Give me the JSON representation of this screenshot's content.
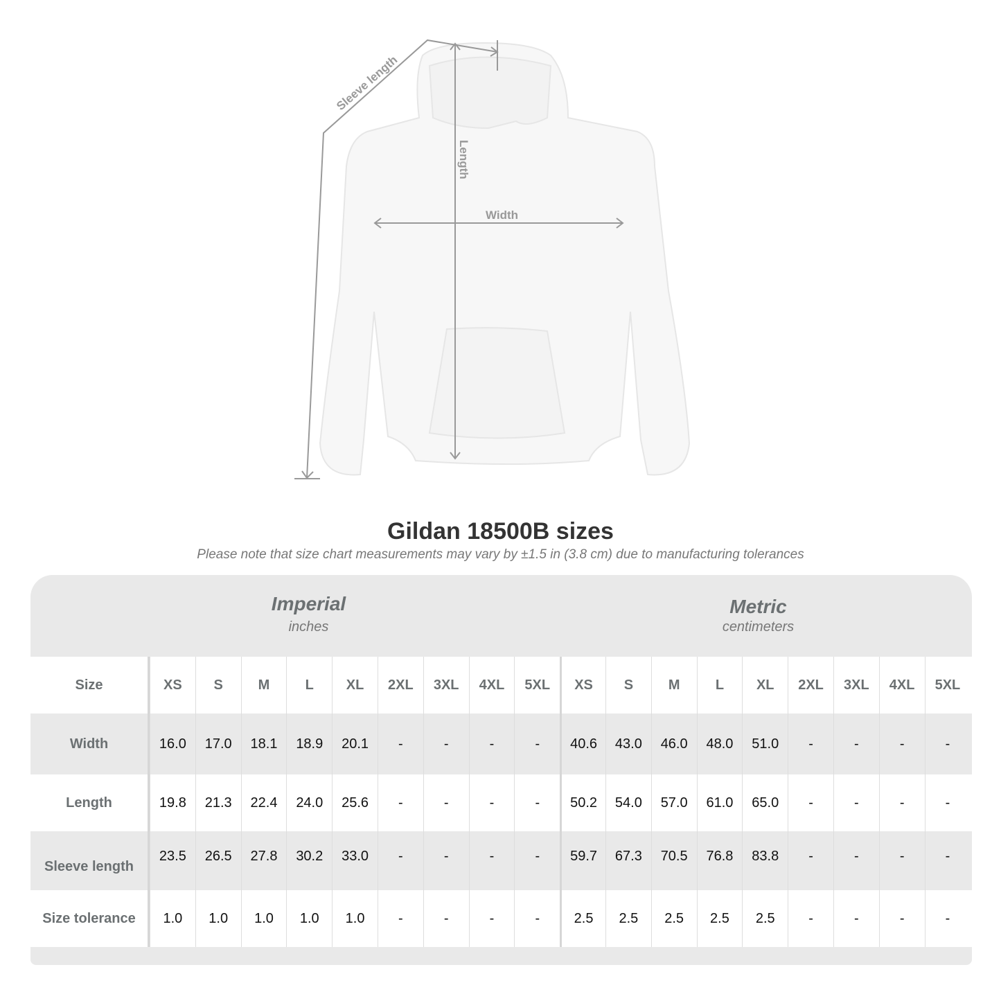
{
  "diagram": {
    "labels": {
      "sleeve": "Sleeve length",
      "length": "Length",
      "width": "Width"
    },
    "garment_color": "#f7f7f7",
    "line_color": "#999999"
  },
  "title": "Gildan 18500B sizes",
  "note": "Please note that size chart measurements may vary by ±1.5 in (3.8 cm) due to manufacturing tolerances",
  "table": {
    "imperial": {
      "name": "Imperial",
      "unit": "inches"
    },
    "metric": {
      "name": "Metric",
      "unit": "centimeters"
    },
    "size_label": "Size",
    "sizes": [
      "XS",
      "S",
      "M",
      "L",
      "XL",
      "2XL",
      "3XL",
      "4XL",
      "5XL"
    ],
    "rows": [
      {
        "label": "Width",
        "imperial": [
          "16.0",
          "17.0",
          "18.1",
          "18.9",
          "20.1",
          "-",
          "-",
          "-",
          "-"
        ],
        "metric": [
          "40.6",
          "43.0",
          "46.0",
          "48.0",
          "51.0",
          "-",
          "-",
          "-",
          "-"
        ]
      },
      {
        "label": "Length",
        "imperial": [
          "19.8",
          "21.3",
          "22.4",
          "24.0",
          "25.6",
          "-",
          "-",
          "-",
          "-"
        ],
        "metric": [
          "50.2",
          "54.0",
          "57.0",
          "61.0",
          "65.0",
          "-",
          "-",
          "-",
          "-"
        ]
      },
      {
        "label": "Sleeve length",
        "imperial": [
          "23.5",
          "26.5",
          "27.8",
          "30.2",
          "33.0",
          "-",
          "-",
          "-",
          "-"
        ],
        "metric": [
          "59.7",
          "67.3",
          "70.5",
          "76.8",
          "83.8",
          "-",
          "-",
          "-",
          "-"
        ]
      },
      {
        "label": "Size tolerance",
        "imperial": [
          "1.0",
          "1.0",
          "1.0",
          "1.0",
          "1.0",
          "-",
          "-",
          "-",
          "-"
        ],
        "metric": [
          "2.5",
          "2.5",
          "2.5",
          "2.5",
          "2.5",
          "-",
          "-",
          "-",
          "-"
        ]
      }
    ]
  }
}
